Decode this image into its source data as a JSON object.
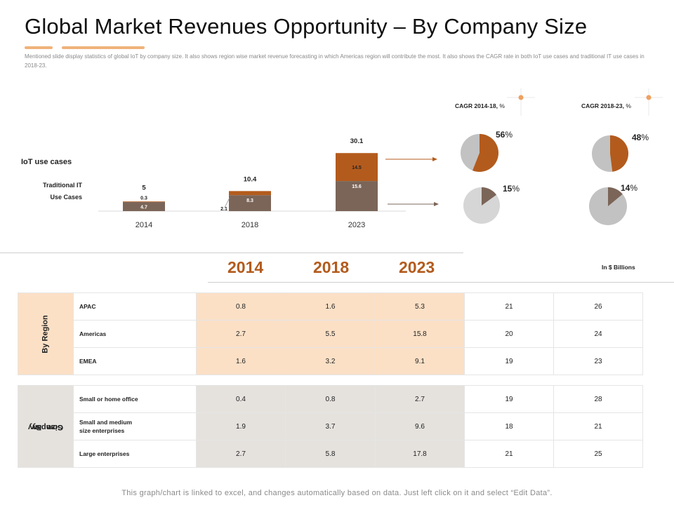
{
  "title": "Global Market Revenues Opportunity – By Company Size",
  "subtitle": "Mentioned slide display statistics of global IoT by company size. It also shows region wise market revenue forecasting in which Americas region will contribute the most. It also shows the CAGR rate in both IoT use cases and traditional IT use cases in 2018-23.",
  "footer": "This graph/chart is linked to excel, and changes automatically based on data. Just left click on it and select “Edit Data”.",
  "colors": {
    "accent": "#b35b1d",
    "iot": "#b35b1d",
    "traditional": "#7b6558",
    "pie_rest": "#c2c2c2",
    "pie_rest_light": "#d6d6d6",
    "region_fill": "#fbe0c6",
    "size_fill": "#e5e2de",
    "title_underline": "#f0b27a"
  },
  "chart_data": [
    {
      "type": "bar",
      "stacked": true,
      "categories": [
        "2014",
        "2018",
        "2023"
      ],
      "series": [
        {
          "name": "Traditional IT Use Cases",
          "values": [
            4.7,
            8.3,
            15.6
          ]
        },
        {
          "name": "IoT use cases",
          "values": [
            0.3,
            2.1,
            14.5
          ]
        }
      ],
      "totals": [
        5,
        10.4,
        30.1
      ],
      "data_labels": {
        "traditional": [
          "4.7",
          "8.3",
          "15.6"
        ],
        "iot": [
          "0.3",
          "2.1",
          "14.5"
        ],
        "totals": [
          "5",
          "10.4",
          "30.1"
        ]
      },
      "legend_labels": {
        "iot": "IoT use cases",
        "traditional_line1": "Traditional IT",
        "traditional_line2": "Use Cases"
      }
    },
    {
      "type": "pie",
      "title": "CAGR 2014-18,",
      "unit": "%",
      "slices": [
        {
          "name": "IoT use cases",
          "value": 56,
          "label": "56"
        },
        {
          "name": "Traditional IT Use Cases",
          "value": 15,
          "label": "15"
        }
      ]
    },
    {
      "type": "pie",
      "title": "CAGR 2018-23,",
      "unit": "%",
      "slices": [
        {
          "name": "IoT use cases",
          "value": 48,
          "label": "48"
        },
        {
          "name": "Traditional IT Use Cases",
          "value": 14,
          "label": "14"
        }
      ]
    },
    {
      "type": "table",
      "year_headers": [
        "2014",
        "2018",
        "2023"
      ],
      "unit_note": "In $ Billions",
      "groups": [
        {
          "label": "By Region",
          "rows": [
            {
              "label": "APAC",
              "values": [
                "0.8",
                "1.6",
                "5.3",
                "21",
                "26"
              ]
            },
            {
              "label": "Americas",
              "values": [
                "2.7",
                "5.5",
                "15.8",
                "20",
                "24"
              ]
            },
            {
              "label": "EMEA",
              "values": [
                "1.6",
                "3.2",
                "9.1",
                "19",
                "23"
              ]
            }
          ]
        },
        {
          "label_line1": "By",
          "label_line2": "Company",
          "label_line3": "Size",
          "rows": [
            {
              "label": "Small or home office",
              "values": [
                "0.4",
                "0.8",
                "2.7",
                "19",
                "28"
              ]
            },
            {
              "label_line1": "Small and medium",
              "label_line2": "size enterprises",
              "values": [
                "1.9",
                "3.7",
                "9.6",
                "18",
                "21"
              ]
            },
            {
              "label": "Large enterprises",
              "values": [
                "2.7",
                "5.8",
                "17.8",
                "21",
                "25"
              ]
            }
          ]
        }
      ]
    }
  ]
}
